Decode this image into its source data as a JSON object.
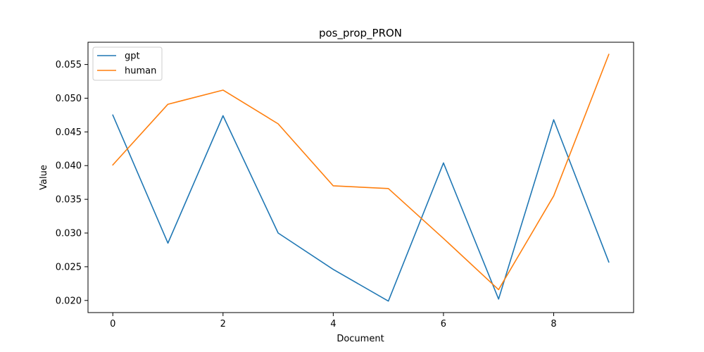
{
  "chart_data": {
    "type": "line",
    "title": "pos_prop_PRON",
    "xlabel": "Document",
    "ylabel": "Value",
    "x": [
      0,
      1,
      2,
      3,
      4,
      5,
      6,
      7,
      8,
      9
    ],
    "xlim": [
      -0.45,
      9.45
    ],
    "ylim": [
      0.0182,
      0.0583
    ],
    "xticks": [
      0,
      2,
      4,
      6,
      8
    ],
    "xtick_labels": [
      "0",
      "2",
      "4",
      "6",
      "8"
    ],
    "yticks": [
      0.02,
      0.025,
      0.03,
      0.035,
      0.04,
      0.045,
      0.05,
      0.055
    ],
    "ytick_labels": [
      "0.020",
      "0.025",
      "0.030",
      "0.035",
      "0.040",
      "0.045",
      "0.050",
      "0.055"
    ],
    "grid": false,
    "legend_position": "top-left",
    "series": [
      {
        "name": "gpt",
        "color": "#1f77b4",
        "values": [
          0.0475,
          0.0285,
          0.0474,
          0.03,
          0.0246,
          0.0199,
          0.0404,
          0.0202,
          0.0468,
          0.0257
        ]
      },
      {
        "name": "human",
        "color": "#ff7f0e",
        "values": [
          0.0401,
          0.0491,
          0.0512,
          0.0462,
          0.037,
          0.0366,
          0.0292,
          0.0216,
          0.0355,
          0.0565
        ]
      }
    ]
  }
}
